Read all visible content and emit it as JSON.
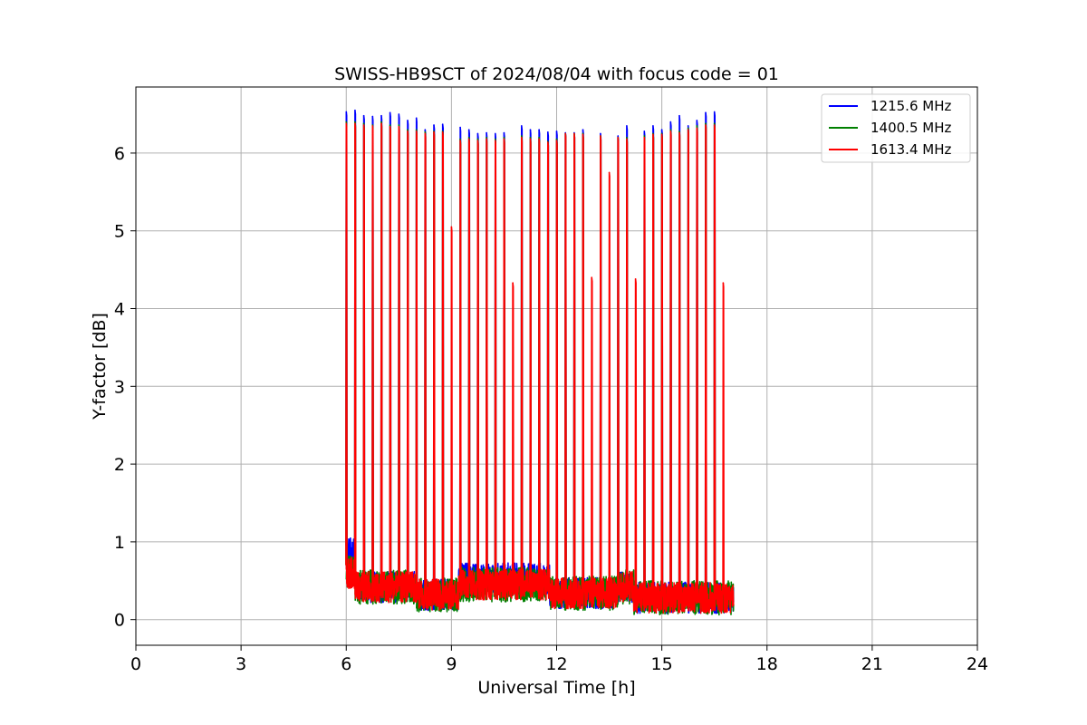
{
  "chart_data": {
    "type": "line",
    "title": "SWISS-HB9SCT of 2024/08/04 with focus code = 01",
    "xlabel": "Universal Time [h]",
    "ylabel": "Y-factor [dB]",
    "xlim": [
      0,
      24
    ],
    "ylim": [
      -0.33,
      6.85
    ],
    "x_ticks": [
      0,
      3,
      6,
      9,
      12,
      15,
      18,
      21,
      24
    ],
    "y_ticks": [
      0,
      1,
      2,
      3,
      4,
      5,
      6
    ],
    "grid": true,
    "legend_position": "upper right",
    "data_span_hours": [
      6.0,
      17.05
    ],
    "series": [
      {
        "name": "1215.6 MHz",
        "color": "#0000ff",
        "peaks": [
          {
            "x": 6.0,
            "y": 6.53
          },
          {
            "x": 6.25,
            "y": 6.55
          },
          {
            "x": 6.5,
            "y": 6.48
          },
          {
            "x": 6.75,
            "y": 6.47
          },
          {
            "x": 7.0,
            "y": 6.48
          },
          {
            "x": 7.25,
            "y": 6.52
          },
          {
            "x": 7.5,
            "y": 6.5
          },
          {
            "x": 7.75,
            "y": 6.42
          },
          {
            "x": 8.0,
            "y": 6.45
          },
          {
            "x": 8.25,
            "y": 6.3
          },
          {
            "x": 8.5,
            "y": 6.36
          },
          {
            "x": 8.75,
            "y": 6.37
          },
          {
            "x": 9.25,
            "y": 6.33
          },
          {
            "x": 9.5,
            "y": 6.3
          },
          {
            "x": 9.75,
            "y": 6.25
          },
          {
            "x": 10.0,
            "y": 6.26
          },
          {
            "x": 10.25,
            "y": 6.25
          },
          {
            "x": 10.5,
            "y": 6.26
          },
          {
            "x": 11.0,
            "y": 6.35
          },
          {
            "x": 11.25,
            "y": 6.3
          },
          {
            "x": 11.5,
            "y": 6.3
          },
          {
            "x": 11.75,
            "y": 6.27
          },
          {
            "x": 12.0,
            "y": 6.28
          },
          {
            "x": 12.25,
            "y": 6.26
          },
          {
            "x": 12.5,
            "y": 6.26
          },
          {
            "x": 12.75,
            "y": 6.3
          },
          {
            "x": 13.25,
            "y": 6.25
          },
          {
            "x": 13.75,
            "y": 6.22
          },
          {
            "x": 14.0,
            "y": 6.35
          },
          {
            "x": 14.5,
            "y": 6.28
          },
          {
            "x": 14.75,
            "y": 6.35
          },
          {
            "x": 15.0,
            "y": 6.3
          },
          {
            "x": 15.25,
            "y": 6.4
          },
          {
            "x": 15.5,
            "y": 6.48
          },
          {
            "x": 15.75,
            "y": 6.35
          },
          {
            "x": 16.0,
            "y": 6.42
          },
          {
            "x": 16.25,
            "y": 6.52
          },
          {
            "x": 16.5,
            "y": 6.53
          }
        ]
      },
      {
        "name": "1400.5 MHz",
        "color": "#008000",
        "peaks": [
          {
            "x": 6.0,
            "y": 6.4
          },
          {
            "x": 6.25,
            "y": 6.4
          },
          {
            "x": 6.5,
            "y": 6.38
          },
          {
            "x": 6.75,
            "y": 6.36
          },
          {
            "x": 7.0,
            "y": 6.4
          },
          {
            "x": 7.25,
            "y": 6.36
          },
          {
            "x": 7.5,
            "y": 6.36
          },
          {
            "x": 7.75,
            "y": 6.3
          },
          {
            "x": 8.0,
            "y": 6.3
          },
          {
            "x": 8.25,
            "y": 6.27
          },
          {
            "x": 8.5,
            "y": 6.28
          },
          {
            "x": 8.75,
            "y": 6.28
          },
          {
            "x": 9.25,
            "y": 6.18
          },
          {
            "x": 9.5,
            "y": 6.2
          },
          {
            "x": 9.75,
            "y": 6.18
          },
          {
            "x": 10.0,
            "y": 6.2
          },
          {
            "x": 10.25,
            "y": 6.18
          },
          {
            "x": 10.5,
            "y": 6.2
          },
          {
            "x": 11.0,
            "y": 6.22
          },
          {
            "x": 11.25,
            "y": 6.2
          },
          {
            "x": 11.5,
            "y": 6.2
          },
          {
            "x": 11.75,
            "y": 6.15
          },
          {
            "x": 12.0,
            "y": 6.18
          },
          {
            "x": 12.25,
            "y": 6.25
          },
          {
            "x": 12.5,
            "y": 6.25
          },
          {
            "x": 12.75,
            "y": 6.25
          },
          {
            "x": 13.25,
            "y": 6.22
          },
          {
            "x": 13.75,
            "y": 6.2
          },
          {
            "x": 14.0,
            "y": 6.2
          },
          {
            "x": 14.5,
            "y": 6.22
          },
          {
            "x": 14.75,
            "y": 6.25
          },
          {
            "x": 15.0,
            "y": 6.25
          },
          {
            "x": 15.25,
            "y": 6.3
          },
          {
            "x": 15.5,
            "y": 6.28
          },
          {
            "x": 15.75,
            "y": 6.32
          },
          {
            "x": 16.0,
            "y": 6.35
          },
          {
            "x": 16.25,
            "y": 6.38
          },
          {
            "x": 16.5,
            "y": 6.38
          }
        ]
      },
      {
        "name": "1613.4 MHz",
        "color": "#ff0000",
        "peaks": [
          {
            "x": 6.0,
            "y": 6.38
          },
          {
            "x": 6.25,
            "y": 6.38
          },
          {
            "x": 6.5,
            "y": 6.36
          },
          {
            "x": 6.75,
            "y": 6.35
          },
          {
            "x": 7.0,
            "y": 6.38
          },
          {
            "x": 7.25,
            "y": 6.34
          },
          {
            "x": 7.5,
            "y": 6.34
          },
          {
            "x": 7.75,
            "y": 6.28
          },
          {
            "x": 8.0,
            "y": 6.28
          },
          {
            "x": 8.25,
            "y": 6.25
          },
          {
            "x": 8.5,
            "y": 6.27
          },
          {
            "x": 8.75,
            "y": 6.27
          },
          {
            "x": 9.0,
            "y": 5.05
          },
          {
            "x": 9.25,
            "y": 6.16
          },
          {
            "x": 9.5,
            "y": 6.18
          },
          {
            "x": 9.75,
            "y": 6.16
          },
          {
            "x": 10.0,
            "y": 6.18
          },
          {
            "x": 10.25,
            "y": 6.16
          },
          {
            "x": 10.5,
            "y": 6.18
          },
          {
            "x": 10.75,
            "y": 4.33
          },
          {
            "x": 11.0,
            "y": 6.2
          },
          {
            "x": 11.25,
            "y": 6.18
          },
          {
            "x": 11.5,
            "y": 6.18
          },
          {
            "x": 11.75,
            "y": 6.14
          },
          {
            "x": 12.0,
            "y": 6.16
          },
          {
            "x": 12.25,
            "y": 6.25
          },
          {
            "x": 12.5,
            "y": 6.25
          },
          {
            "x": 12.75,
            "y": 6.24
          },
          {
            "x": 13.0,
            "y": 4.4
          },
          {
            "x": 13.25,
            "y": 6.22
          },
          {
            "x": 13.5,
            "y": 5.75
          },
          {
            "x": 13.75,
            "y": 6.2
          },
          {
            "x": 14.0,
            "y": 6.18
          },
          {
            "x": 14.25,
            "y": 4.38
          },
          {
            "x": 14.5,
            "y": 6.2
          },
          {
            "x": 14.75,
            "y": 6.24
          },
          {
            "x": 15.0,
            "y": 6.24
          },
          {
            "x": 15.25,
            "y": 6.28
          },
          {
            "x": 15.5,
            "y": 6.26
          },
          {
            "x": 15.75,
            "y": 6.3
          },
          {
            "x": 16.0,
            "y": 6.32
          },
          {
            "x": 16.25,
            "y": 6.36
          },
          {
            "x": 16.5,
            "y": 6.36
          },
          {
            "x": 16.75,
            "y": 4.33
          }
        ]
      }
    ],
    "baseline_level_db": [
      0.1,
      0.8
    ]
  }
}
